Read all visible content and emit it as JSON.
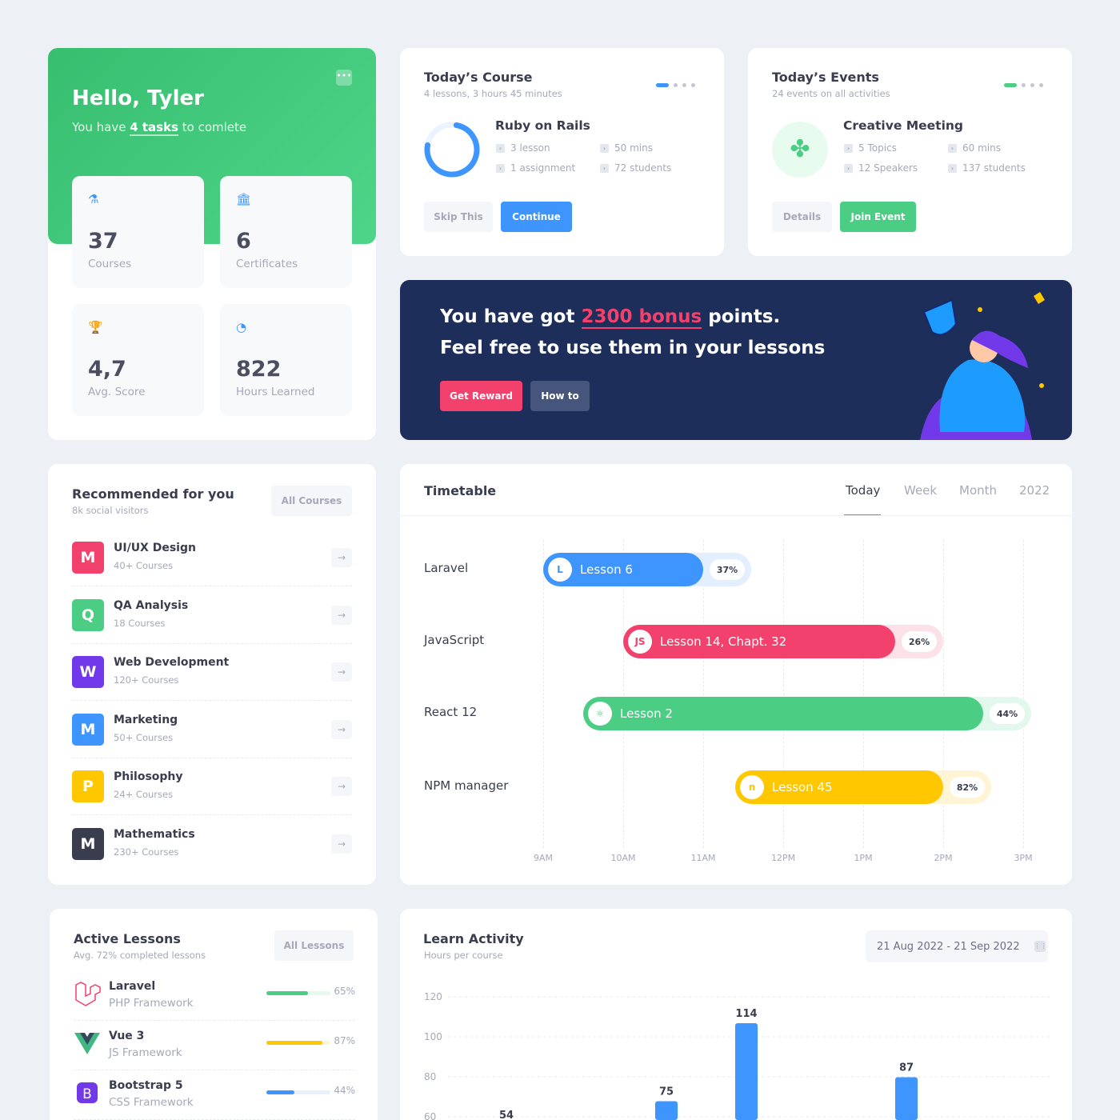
{
  "colors": {
    "green": "#4ccd84",
    "blue": "#3d95fd",
    "red": "#f1416c",
    "yellow": "#ffc700",
    "navy": "#1e2e5a"
  },
  "hello": {
    "title": "Hello, Tyler",
    "sub_pre": "You have ",
    "sub_bold": "4 tasks",
    "sub_post": " to comlete",
    "menu_icon": "more-dots-icon",
    "stats": [
      {
        "value": "37",
        "label": "Courses",
        "icon": "flask-icon"
      },
      {
        "value": "6",
        "label": "Certificates",
        "icon": "bank-icon"
      },
      {
        "value": "4,7",
        "label": "Avg. Score",
        "icon": "trophy-icon"
      },
      {
        "value": "822",
        "label": "Hours Learned",
        "icon": "clock-icon"
      }
    ]
  },
  "course": {
    "title": "Today’s Course",
    "subtitle": "4 lessons, 3 hours 45 minutes",
    "name": "Ruby on Rails",
    "progress": 0.75,
    "meta": [
      "3 lesson",
      "50 mins",
      "1 assignment",
      "72 students"
    ],
    "skip": "Skip This",
    "continue": "Continue"
  },
  "events": {
    "title": "Today’s Events",
    "subtitle": "24 events on all activities",
    "name": "Creative Meeting",
    "meta": [
      "5 Topics",
      "60 mins",
      "12 Speakers",
      "137 students"
    ],
    "details": "Details",
    "join": "Join Event"
  },
  "banner": {
    "pre": "You have got ",
    "highlight": "2300 bonus",
    "post": " points.",
    "line2": "Feel free to use them in your lessons",
    "reward": "Get Reward",
    "howto": "How to"
  },
  "recommended": {
    "title": "Recommended for you",
    "subtitle": "8k social visitors",
    "all": "All Courses",
    "items": [
      {
        "letter": "M",
        "name": "UI/UX Design",
        "count": "40+ Courses",
        "color": "#f1416c"
      },
      {
        "letter": "Q",
        "name": "QA Analysis",
        "count": "18 Courses",
        "color": "#4ccd84"
      },
      {
        "letter": "W",
        "name": "Web Development",
        "count": "120+ Courses",
        "color": "#7239ea"
      },
      {
        "letter": "M",
        "name": "Marketing",
        "count": "50+ Courses",
        "color": "#3d95fd"
      },
      {
        "letter": "P",
        "name": "Philosophy",
        "count": "24+ Courses",
        "color": "#ffc700"
      },
      {
        "letter": "M",
        "name": "Mathematics",
        "count": "230+ Courses",
        "color": "#3a3d4e"
      }
    ]
  },
  "timetable": {
    "title": "Timetable",
    "tabs": [
      "Today",
      "Week",
      "Month",
      "2022"
    ],
    "active_tab": "Today",
    "hours": [
      "9AM",
      "10AM",
      "11AM",
      "12PM",
      "1PM",
      "2PM",
      "3PM"
    ],
    "rows": [
      {
        "label": "Laravel",
        "lesson": "Lesson 6",
        "percent": "37%",
        "start": 9.0,
        "end": 11.6,
        "color": "#3d95fd",
        "track": "#e3effe",
        "icon": "laravel-icon",
        "icon_text": "L"
      },
      {
        "label": "JavaScript",
        "lesson": "Lesson 14, Chapt. 32",
        "percent": "26%",
        "start": 10.0,
        "end": 14.0,
        "color": "#f1416c",
        "track": "#fde1e8",
        "icon": "javascript-icon",
        "icon_text": "JS"
      },
      {
        "label": "React 12",
        "lesson": "Lesson 2",
        "percent": "44%",
        "start": 9.5,
        "end": 15.1,
        "color": "#4ccd84",
        "track": "#e3f8ec",
        "icon": "react-icon",
        "icon_text": "⚛"
      },
      {
        "label": "NPM manager",
        "lesson": "Lesson 45",
        "percent": "82%",
        "start": 11.4,
        "end": 14.6,
        "color": "#ffc700",
        "track": "#fff5d6",
        "icon": "npm-icon",
        "icon_text": "n"
      }
    ]
  },
  "active_lessons": {
    "title": "Active Lessons",
    "subtitle": "Avg. 72% completed lessons",
    "all": "All Lessons",
    "items": [
      {
        "name": "Laravel",
        "framework": "PHP Framework",
        "percent": "65%",
        "value": 0.65,
        "color": "#4ccd84",
        "track": "#e6f9ee",
        "icon": "laravel-icon"
      },
      {
        "name": "Vue 3",
        "framework": "JS Framework",
        "percent": "87%",
        "value": 0.87,
        "color": "#ffc700",
        "track": "#fff6d9",
        "icon": "vue-icon"
      },
      {
        "name": "Bootstrap 5",
        "framework": "CSS Framework",
        "percent": "44%",
        "value": 0.44,
        "color": "#3d95fd",
        "track": "#e8f2ff",
        "icon": "bootstrap-icon"
      }
    ]
  },
  "chart_data": {
    "type": "bar",
    "title": "Learn Activity",
    "subtitle": "Hours per course",
    "date_range": "21 Aug 2022 - 21 Sep 2022",
    "yticks": [
      60,
      80,
      100,
      120
    ],
    "ylim": [
      60,
      120
    ],
    "grid": true,
    "values": [
      54,
      null,
      75,
      114,
      null,
      87,
      null
    ],
    "color": "#3d95fd"
  }
}
